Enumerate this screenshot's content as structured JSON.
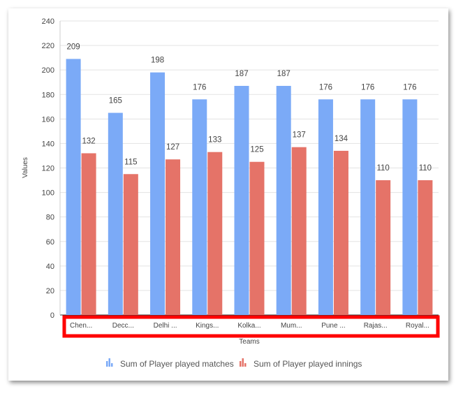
{
  "chart_data": {
    "type": "bar",
    "categories": [
      "Chen...",
      "Decc...",
      "Delhi ...",
      "Kings...",
      "Kolka...",
      "Mum...",
      "Pune ...",
      "Rajas...",
      "Royal..."
    ],
    "series": [
      {
        "name": "Sum of Player played matches",
        "values": [
          209,
          165,
          198,
          176,
          187,
          187,
          176,
          176,
          176
        ],
        "color": "#7baaf7"
      },
      {
        "name": "Sum of Player played innings",
        "values": [
          132,
          115,
          127,
          133,
          125,
          137,
          134,
          110,
          110
        ],
        "color": "#e57368"
      }
    ],
    "xlabel": "Teams",
    "ylabel": "Values",
    "ylim": [
      0,
      240
    ],
    "yticks": [
      0,
      20,
      40,
      60,
      80,
      100,
      120,
      140,
      160,
      180,
      200,
      220,
      240
    ],
    "grid": true,
    "legend": "bottom",
    "highlight_color": "#ff0000"
  }
}
